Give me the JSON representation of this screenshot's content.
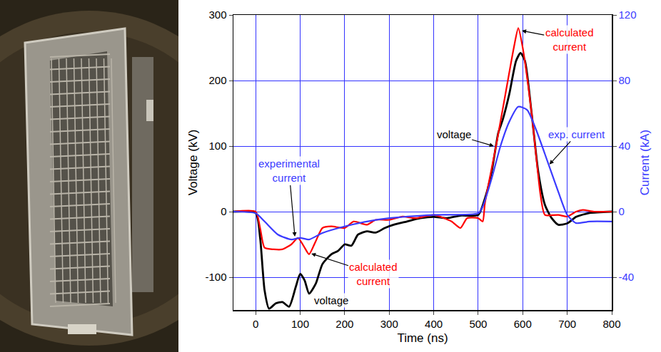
{
  "chart_data": {
    "type": "line",
    "x_label": "Time (ns)",
    "y_label": "Voltage (kV)",
    "y2_label": "Current (kA)",
    "xlim": [
      -50,
      800
    ],
    "xticks": [
      0,
      100,
      200,
      300,
      400,
      500,
      600,
      700,
      800
    ],
    "ylim": [
      -150,
      300
    ],
    "yticks": [
      -100,
      0,
      100,
      200,
      300
    ],
    "y2lim": [
      -60,
      120
    ],
    "y2ticks": [
      -40,
      0,
      40,
      80,
      120
    ],
    "grid": true,
    "series": [
      {
        "name": "voltage",
        "color": "#000000",
        "x": [
          -50,
          0,
          10,
          20,
          30,
          45,
          60,
          75,
          90,
          100,
          110,
          120,
          135,
          150,
          170,
          185,
          200,
          215,
          230,
          250,
          270,
          290,
          310,
          340,
          370,
          400,
          430,
          460,
          500,
          515,
          530,
          545,
          555,
          570,
          585,
          595,
          605,
          620,
          635,
          650,
          665,
          680,
          700,
          720,
          750,
          800
        ],
        "values": [
          0,
          -2,
          -40,
          -120,
          -148,
          -140,
          -138,
          -145,
          -115,
          -95,
          -105,
          -125,
          -110,
          -80,
          -65,
          -60,
          -50,
          -52,
          -35,
          -30,
          -32,
          -25,
          -20,
          -15,
          -10,
          -8,
          -10,
          -6,
          -5,
          20,
          60,
          120,
          140,
          180,
          230,
          242,
          230,
          150,
          60,
          10,
          -10,
          -20,
          -18,
          -8,
          -2,
          0
        ]
      },
      {
        "name": "calculated current",
        "color": "#ff0000",
        "axis": "y2",
        "x": [
          -50,
          0,
          10,
          20,
          40,
          60,
          80,
          95,
          110,
          120,
          135,
          150,
          170,
          200,
          220,
          250,
          270,
          300,
          330,
          360,
          400,
          440,
          460,
          475,
          500,
          510,
          515,
          540,
          560,
          580,
          590,
          600,
          620,
          640,
          650,
          680,
          700,
          720,
          735,
          760,
          800
        ],
        "values": [
          0,
          0,
          -10,
          -22,
          -23,
          -23,
          -20,
          -16,
          -22,
          -26,
          -18,
          -10,
          -9,
          -10,
          -6,
          -8,
          -5,
          -5,
          -3,
          -4,
          -2,
          -6,
          -10,
          -4,
          -4,
          -6,
          5,
          40,
          70,
          100,
          112,
          100,
          60,
          10,
          -2,
          -2,
          -3,
          0,
          1,
          0,
          0
        ]
      },
      {
        "name": "experimental current",
        "color": "#3b3bff",
        "axis": "y2",
        "x": [
          -50,
          0,
          20,
          50,
          80,
          100,
          120,
          150,
          200,
          250,
          300,
          400,
          500,
          510,
          530,
          550,
          570,
          590,
          610,
          630,
          650,
          680,
          700,
          720,
          750,
          800
        ],
        "values": [
          0,
          -1,
          -6,
          -14,
          -17,
          -16,
          -17,
          -13,
          -9,
          -6,
          -4,
          -2,
          -1,
          3,
          20,
          40,
          55,
          64,
          62,
          50,
          35,
          12,
          -2,
          -7,
          -6,
          -6
        ]
      }
    ],
    "annotations": [
      {
        "text": "calculated\ncurrent",
        "color": "#ff0000",
        "x": 705,
        "y": 262,
        "arrow_to": [
          598,
          276
        ]
      },
      {
        "text": "exp. current",
        "color": "#3b3bff",
        "x": 722,
        "y": 118,
        "arrow_to": [
          660,
          72
        ]
      },
      {
        "text": "voltage",
        "color": "#000000",
        "x": 445,
        "y": 118,
        "arrow_to": [
          535,
          100
        ]
      },
      {
        "text": "experimental\ncurrent",
        "color": "#3b3bff",
        "x": 75,
        "y": 62,
        "arrow_to": [
          88,
          -38
        ]
      },
      {
        "text": "calculated\ncurrent",
        "color": "#ff0000",
        "x": 265,
        "y": -95,
        "arrow_to": [
          125,
          -64
        ]
      },
      {
        "text": "voltage",
        "color": "#000000",
        "x": 170,
        "y": -135
      }
    ]
  }
}
